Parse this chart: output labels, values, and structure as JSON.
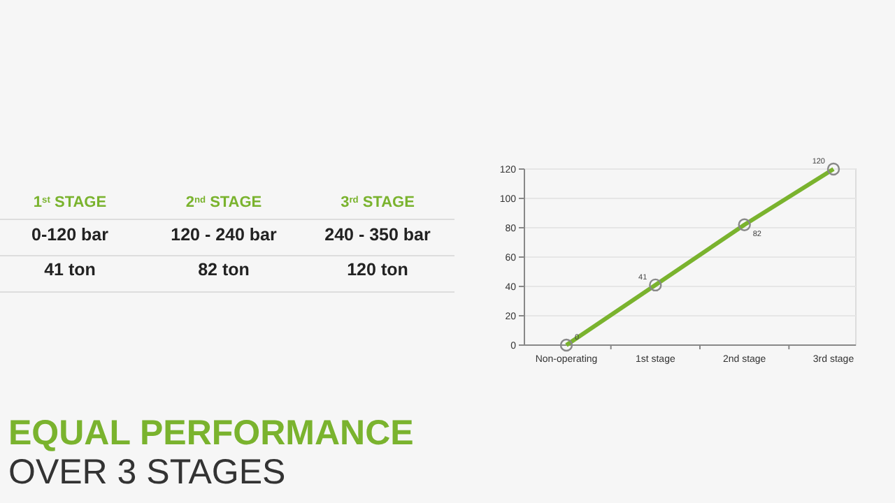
{
  "chart_data": [
    {
      "type": "other",
      "title": "EQUAL PERFORMANCE",
      "subtitle": "OVER 3 STAGES",
      "annotations": [
        "1$^{st}$ STAGE",
        "2$^{nd}$ STAGE",
        "3$^{rd}$ STAGE",
        "0-120 bar",
        "120 - 240 bar",
        "240 - 350 bar",
        "41 ton",
        "82 ton",
        "120 ton"
      ]
    },
    {
      "type": "line",
      "categories": [
        "Non-operating",
        "1st stage",
        "2nd stage",
        "3rd stage"
      ],
      "series": [
        {
          "color": "#7ab32e",
          "values": [
            0,
            41,
            82,
            120
          ]
        }
      ],
      "ylim": [
        0,
        120
      ],
      "yticks": [
        0,
        20,
        40,
        60,
        80,
        100,
        120
      ],
      "grid": "y",
      "marker": "circle",
      "data_labels": true,
      "line_style": "solid"
    }
  ]
}
